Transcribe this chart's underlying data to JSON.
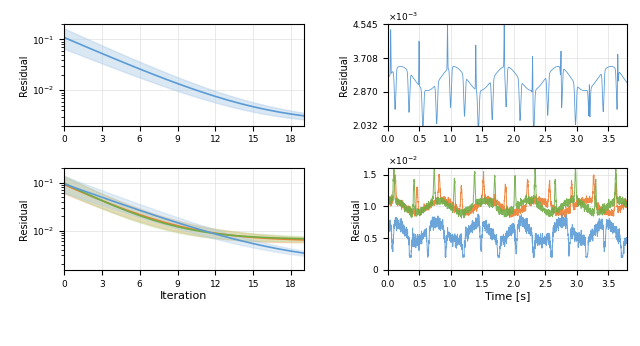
{
  "fig_width": 6.4,
  "fig_height": 3.46,
  "dpi": 100,
  "background_color": "#ffffff",
  "top_left": {
    "xlim": [
      0,
      19
    ],
    "ylim_log": [
      0.002,
      0.2
    ],
    "xticks": [
      0,
      3,
      6,
      9,
      12,
      15,
      18
    ],
    "ylabel": "Residual",
    "line_color": "#5b9bd5",
    "fill_color": "#aecce8",
    "fill_alpha": 0.45
  },
  "top_right": {
    "xlim": [
      0.0,
      3.8
    ],
    "ylim": [
      0.002032,
      0.004545
    ],
    "xticks": [
      0.0,
      0.5,
      1.0,
      1.5,
      2.0,
      2.5,
      3.0,
      3.5
    ],
    "yticks": [
      0.002032,
      0.00287,
      0.003708,
      0.004545
    ],
    "ytick_labels": [
      "2.032",
      "2.870",
      "3.708",
      "4.545"
    ],
    "ylabel": "Residual",
    "line_color": "#5b9bd5"
  },
  "bot_left": {
    "xlim": [
      0,
      19
    ],
    "ylim_log": [
      0.0015,
      0.2
    ],
    "xticks": [
      0,
      3,
      6,
      9,
      12,
      15,
      18
    ],
    "ylabel": "Residual",
    "xlabel": "Iteration",
    "colors": [
      "#5b9bd5",
      "#ed7d31",
      "#70ad47"
    ],
    "fill_colors": [
      "#aecce8",
      "#f4b07a",
      "#b4d488"
    ],
    "fill_alpha": 0.35
  },
  "bot_right": {
    "xlim": [
      0.0,
      3.8
    ],
    "ylim": [
      0.0,
      0.016
    ],
    "xticks": [
      0.0,
      0.5,
      1.0,
      1.5,
      2.0,
      2.5,
      3.0,
      3.5
    ],
    "yticks": [
      0.0,
      0.005,
      0.01,
      0.015
    ],
    "ytick_labels": [
      "0",
      "0.5",
      "1.0",
      "1.5"
    ],
    "ylabel": "Residual",
    "xlabel": "Time [s]",
    "colors": [
      "#5b9bd5",
      "#ed7d31",
      "#70ad47"
    ]
  }
}
